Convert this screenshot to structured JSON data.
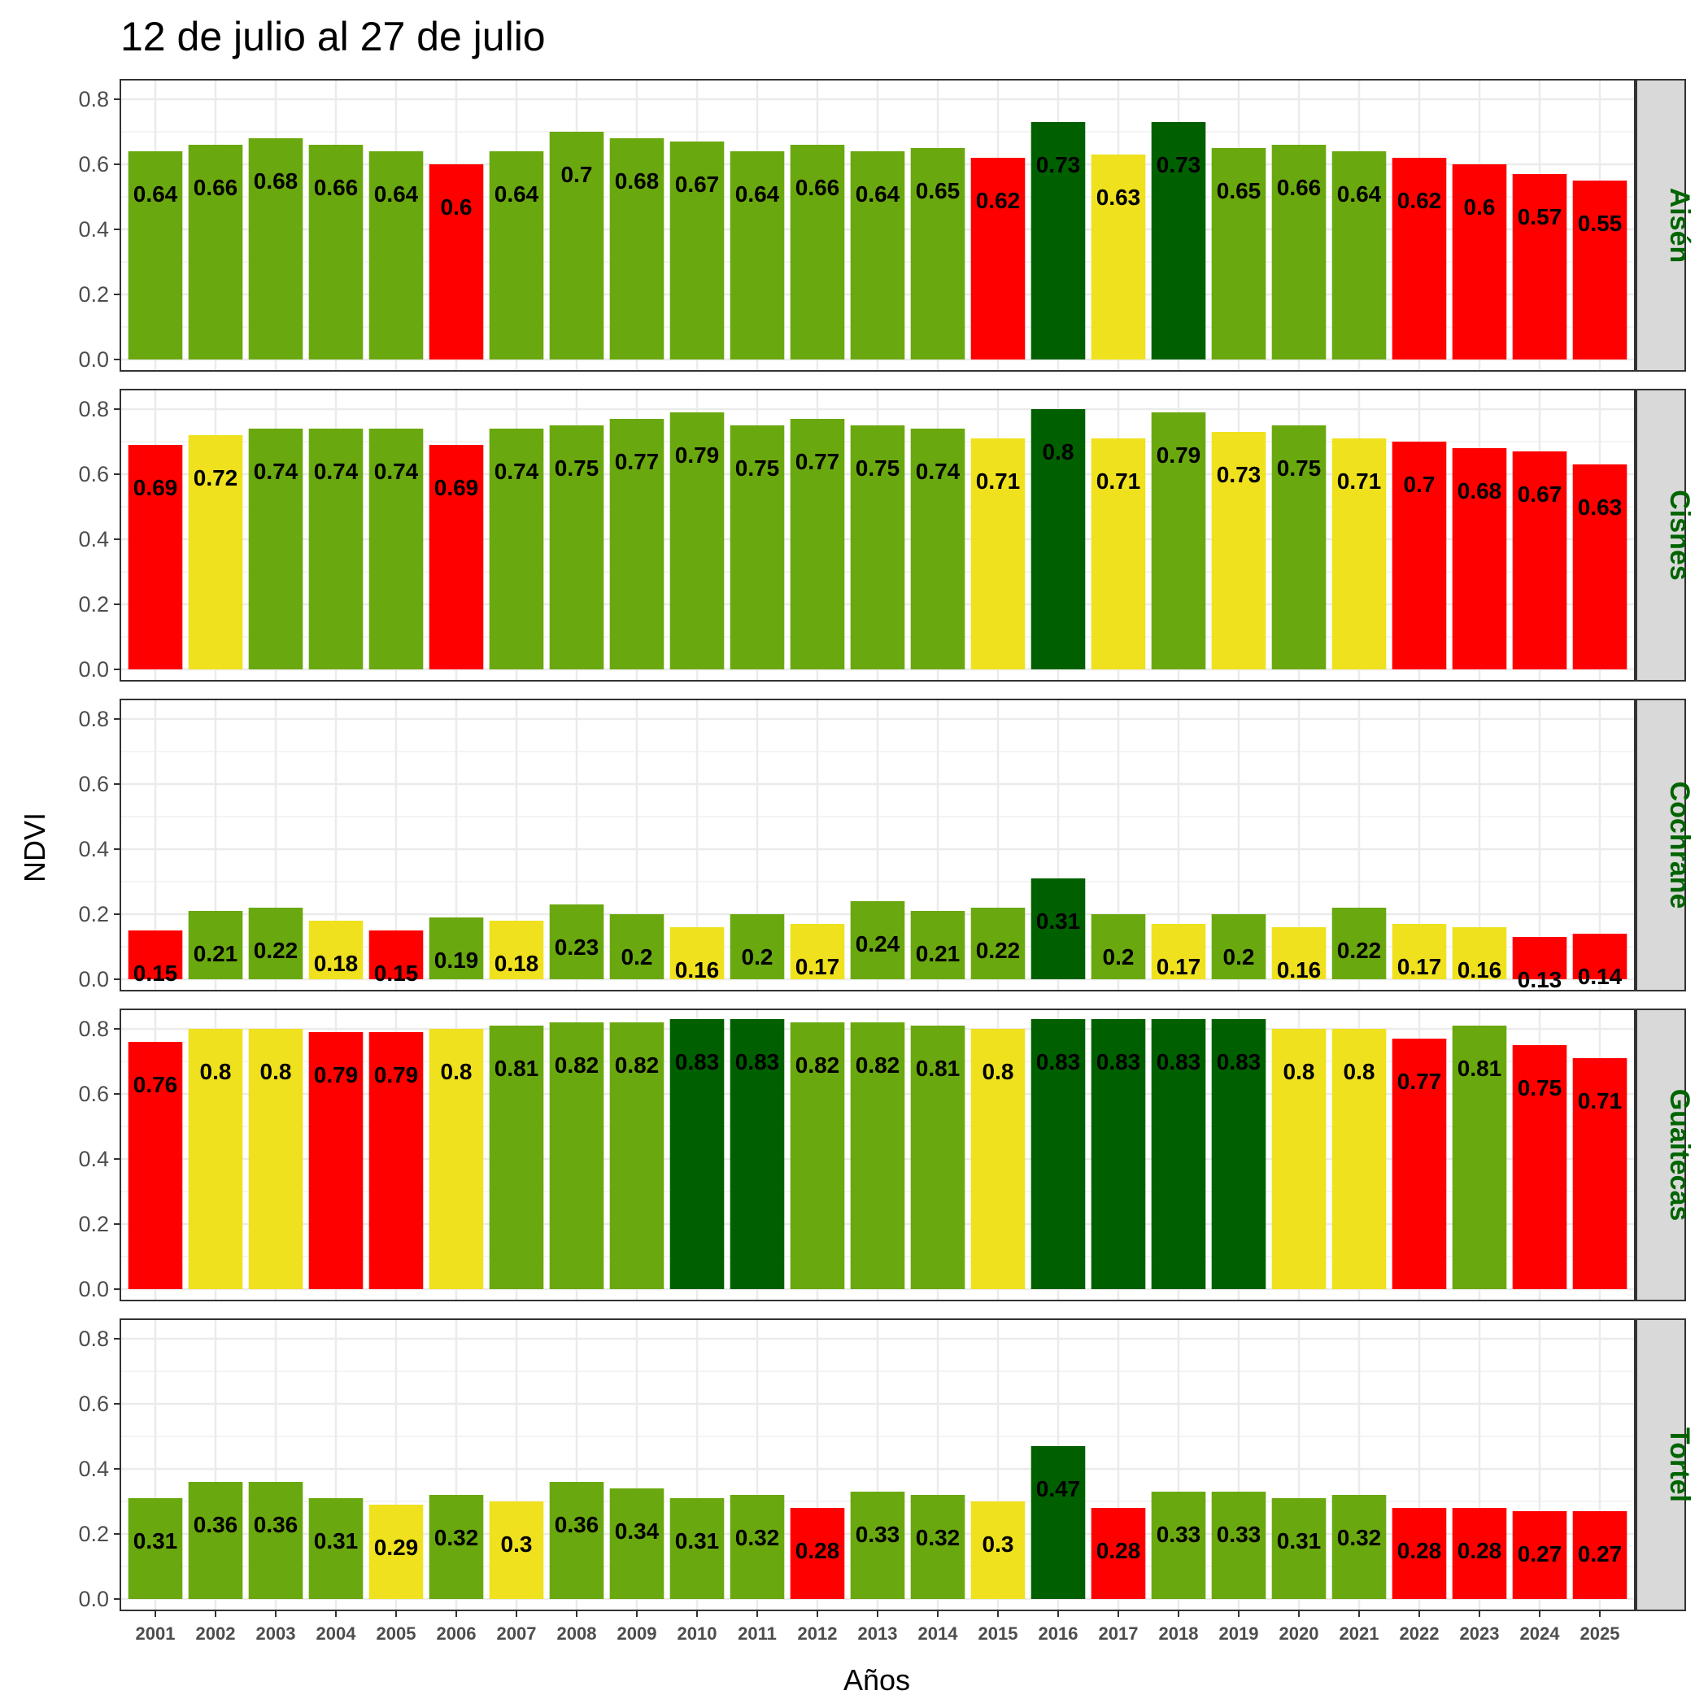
{
  "chart_data": {
    "type": "bar",
    "title": "12 de julio al 27 de julio",
    "xlabel": "Años",
    "ylabel": "NDVI",
    "ylim": [
      0,
      0.86
    ],
    "yticks": [
      "0.0",
      "0.2",
      "0.4",
      "0.6",
      "0.8"
    ],
    "grid": true,
    "categories": [
      "2001",
      "2002",
      "2003",
      "2004",
      "2005",
      "2006",
      "2007",
      "2008",
      "2009",
      "2010",
      "2011",
      "2012",
      "2013",
      "2014",
      "2015",
      "2016",
      "2017",
      "2018",
      "2019",
      "2020",
      "2021",
      "2022",
      "2023",
      "2024",
      "2025"
    ],
    "colors": {
      "red": "#ff0000",
      "yellow": "#f0e11e",
      "green": "#6aa80f",
      "dark_green": "#006000",
      "strip_text": "#006400",
      "strip_fill": "#d9d9d9"
    },
    "panels": [
      {
        "name": "Aisén",
        "values": [
          0.64,
          0.66,
          0.68,
          0.66,
          0.64,
          0.6,
          0.64,
          0.7,
          0.68,
          0.67,
          0.64,
          0.66,
          0.64,
          0.65,
          0.62,
          0.73,
          0.63,
          0.73,
          0.65,
          0.66,
          0.64,
          0.62,
          0.6,
          0.57,
          0.55
        ],
        "labels": [
          "0.64",
          "0.66",
          "0.68",
          "0.66",
          "0.64",
          "0.6",
          "0.64",
          "0.7",
          "0.68",
          "0.67",
          "0.64",
          "0.66",
          "0.64",
          "0.65",
          "0.62",
          "0.73",
          "0.63",
          "0.73",
          "0.65",
          "0.66",
          "0.64",
          "0.62",
          "0.6",
          "0.57",
          "0.55"
        ],
        "classes": [
          "green",
          "green",
          "green",
          "green",
          "green",
          "red",
          "green",
          "green",
          "green",
          "green",
          "green",
          "green",
          "green",
          "green",
          "red",
          "dark_green",
          "yellow",
          "dark_green",
          "green",
          "green",
          "green",
          "red",
          "red",
          "red",
          "red"
        ]
      },
      {
        "name": "Cisnes",
        "values": [
          0.69,
          0.72,
          0.74,
          0.74,
          0.74,
          0.69,
          0.74,
          0.75,
          0.77,
          0.79,
          0.75,
          0.77,
          0.75,
          0.74,
          0.71,
          0.8,
          0.71,
          0.79,
          0.73,
          0.75,
          0.71,
          0.7,
          0.68,
          0.67,
          0.63
        ],
        "labels": [
          "0.69",
          "0.72",
          "0.74",
          "0.74",
          "0.74",
          "0.69",
          "0.74",
          "0.75",
          "0.77",
          "0.79",
          "0.75",
          "0.77",
          "0.75",
          "0.74",
          "0.71",
          "0.8",
          "0.71",
          "0.79",
          "0.73",
          "0.75",
          "0.71",
          "0.7",
          "0.68",
          "0.67",
          "0.63"
        ],
        "classes": [
          "red",
          "yellow",
          "green",
          "green",
          "green",
          "red",
          "green",
          "green",
          "green",
          "green",
          "green",
          "green",
          "green",
          "green",
          "yellow",
          "dark_green",
          "yellow",
          "green",
          "yellow",
          "green",
          "yellow",
          "red",
          "red",
          "red",
          "red"
        ]
      },
      {
        "name": "Cochrane",
        "values": [
          0.15,
          0.21,
          0.22,
          0.18,
          0.15,
          0.19,
          0.18,
          0.23,
          0.2,
          0.16,
          0.2,
          0.17,
          0.24,
          0.21,
          0.22,
          0.31,
          0.2,
          0.17,
          0.2,
          0.16,
          0.22,
          0.17,
          0.16,
          0.13,
          0.14
        ],
        "labels": [
          "0.15",
          "0.21",
          "0.22",
          "0.18",
          "0.15",
          "0.19",
          "0.18",
          "0.23",
          "0.2",
          "0.16",
          "0.2",
          "0.17",
          "0.24",
          "0.21",
          "0.22",
          "0.31",
          "0.2",
          "0.17",
          "0.2",
          "0.16",
          "0.22",
          "0.17",
          "0.16",
          "0.13",
          "0.14"
        ],
        "classes": [
          "red",
          "green",
          "green",
          "yellow",
          "red",
          "green",
          "yellow",
          "green",
          "green",
          "yellow",
          "green",
          "yellow",
          "green",
          "green",
          "green",
          "dark_green",
          "green",
          "yellow",
          "green",
          "yellow",
          "green",
          "yellow",
          "yellow",
          "red",
          "red"
        ]
      },
      {
        "name": "Guaitecas",
        "values": [
          0.76,
          0.8,
          0.8,
          0.79,
          0.79,
          0.8,
          0.81,
          0.82,
          0.82,
          0.83,
          0.83,
          0.82,
          0.82,
          0.81,
          0.8,
          0.83,
          0.83,
          0.83,
          0.83,
          0.8,
          0.8,
          0.77,
          0.81,
          0.75,
          0.71
        ],
        "labels": [
          "0.76",
          "0.8",
          "0.8",
          "0.79",
          "0.79",
          "0.8",
          "0.81",
          "0.82",
          "0.82",
          "0.83",
          "0.83",
          "0.82",
          "0.82",
          "0.81",
          "0.8",
          "0.83",
          "0.83",
          "0.83",
          "0.83",
          "0.8",
          "0.8",
          "0.77",
          "0.81",
          "0.75",
          "0.71"
        ],
        "classes": [
          "red",
          "yellow",
          "yellow",
          "red",
          "red",
          "yellow",
          "green",
          "green",
          "green",
          "dark_green",
          "dark_green",
          "green",
          "green",
          "green",
          "yellow",
          "dark_green",
          "dark_green",
          "dark_green",
          "dark_green",
          "yellow",
          "yellow",
          "red",
          "green",
          "red",
          "red"
        ]
      },
      {
        "name": "Tortel",
        "values": [
          0.31,
          0.36,
          0.36,
          0.31,
          0.29,
          0.32,
          0.3,
          0.36,
          0.34,
          0.31,
          0.32,
          0.28,
          0.33,
          0.32,
          0.3,
          0.47,
          0.28,
          0.33,
          0.33,
          0.31,
          0.32,
          0.28,
          0.28,
          0.27,
          0.27
        ],
        "labels": [
          "0.31",
          "0.36",
          "0.36",
          "0.31",
          "0.29",
          "0.32",
          "0.3",
          "0.36",
          "0.34",
          "0.31",
          "0.32",
          "0.28",
          "0.33",
          "0.32",
          "0.3",
          "0.47",
          "0.28",
          "0.33",
          "0.33",
          "0.31",
          "0.32",
          "0.28",
          "0.28",
          "0.27",
          "0.27"
        ],
        "classes": [
          "green",
          "green",
          "green",
          "green",
          "yellow",
          "green",
          "yellow",
          "green",
          "green",
          "green",
          "green",
          "red",
          "green",
          "green",
          "yellow",
          "dark_green",
          "red",
          "green",
          "green",
          "green",
          "green",
          "red",
          "red",
          "red",
          "red"
        ]
      }
    ]
  }
}
